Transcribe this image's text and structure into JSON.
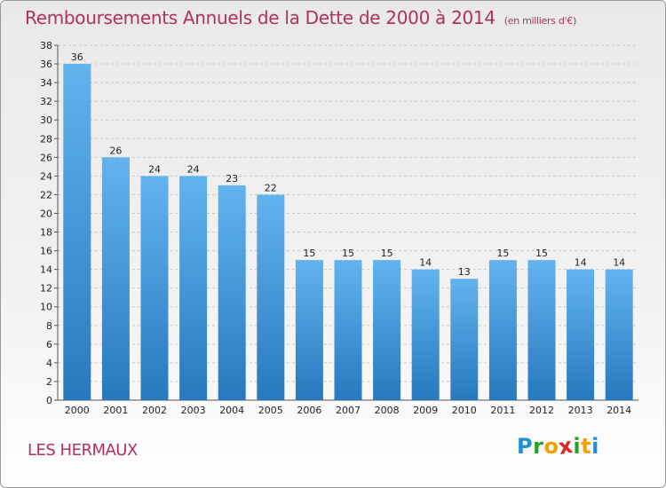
{
  "header": {
    "title": "Remboursements Annuels de la Dette de 2000 à 2014",
    "unit": "(en milliers d'€)"
  },
  "footer": {
    "commune": "LES HERMAUX",
    "logo_letters": [
      "P",
      "r",
      "o",
      "x",
      "i",
      "t",
      "i"
    ]
  },
  "colors": {
    "title": "#b03060",
    "bar_top": "#62b3ee",
    "bar_bottom": "#2779bf",
    "grid": "#c9c9c9",
    "logo": [
      "#1f8fd6",
      "#2aa02a",
      "#f5a000",
      "#d42a2a",
      "#2aa02a",
      "#f5a000",
      "#1f8fd6"
    ]
  },
  "chart_data": {
    "type": "bar",
    "title": "Remboursements Annuels de la Dette de 2000 à 2014",
    "categories": [
      "2000",
      "2001",
      "2002",
      "2003",
      "2004",
      "2005",
      "2006",
      "2007",
      "2008",
      "2009",
      "2010",
      "2011",
      "2012",
      "2013",
      "2014"
    ],
    "values": [
      36,
      26,
      24,
      24,
      23,
      22,
      15,
      15,
      15,
      14,
      13,
      15,
      15,
      14,
      14
    ],
    "yticks": [
      0,
      2,
      4,
      6,
      8,
      10,
      12,
      14,
      16,
      18,
      20,
      22,
      24,
      26,
      28,
      30,
      32,
      34,
      36,
      38
    ],
    "ylim": [
      0,
      38
    ],
    "grid": true,
    "data_labels": true
  }
}
